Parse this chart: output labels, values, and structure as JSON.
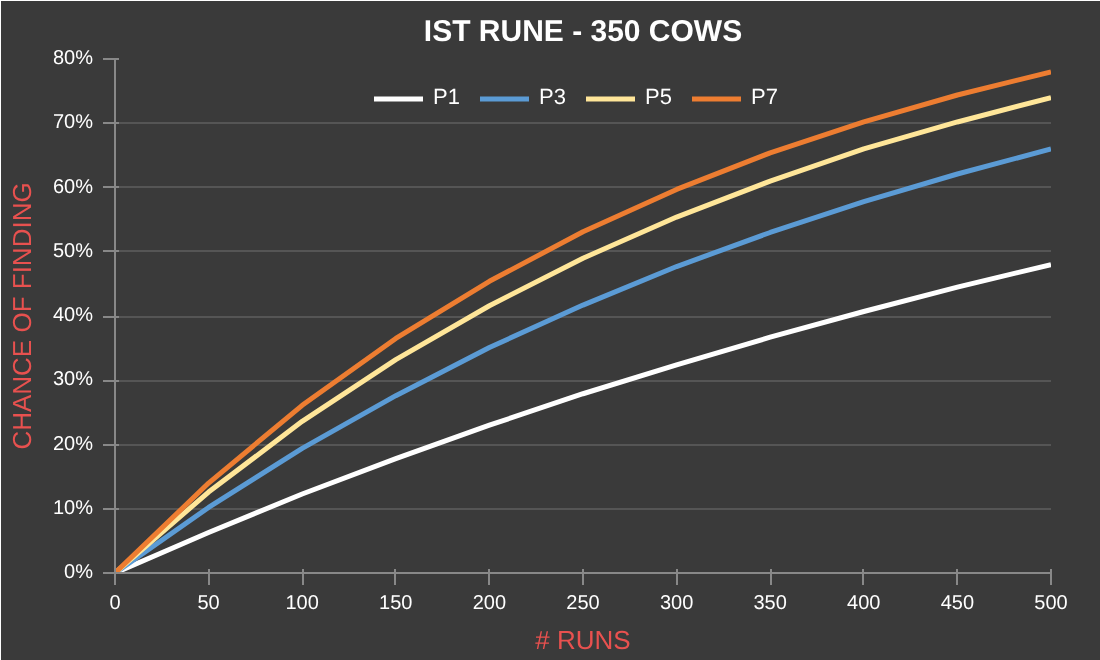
{
  "chart_data": {
    "type": "line",
    "title": "IST RUNE - 350 COWS",
    "xlabel": "# RUNS",
    "ylabel": "CHANCE OF FINDING",
    "x": [
      0,
      50,
      100,
      150,
      200,
      250,
      300,
      350,
      400,
      450,
      500
    ],
    "series": [
      {
        "name": "P1",
        "color": "#ffffff",
        "values": [
          0,
          6.3,
          12.3,
          17.8,
          23.0,
          27.9,
          32.4,
          36.7,
          40.7,
          44.5,
          48
        ]
      },
      {
        "name": "P3",
        "color": "#5b9bd5",
        "values": [
          0,
          10.2,
          19.4,
          27.6,
          35.1,
          41.7,
          47.7,
          53.0,
          57.8,
          62.1,
          66
        ]
      },
      {
        "name": "P5",
        "color": "#ffe699",
        "values": [
          0,
          12.6,
          23.6,
          33.2,
          41.6,
          49.0,
          55.4,
          61.0,
          66.0,
          70.2,
          74
        ]
      },
      {
        "name": "P7",
        "color": "#ed7d31",
        "values": [
          0,
          14.0,
          26.1,
          36.5,
          45.4,
          53.1,
          59.7,
          65.4,
          70.2,
          74.4,
          78
        ]
      }
    ],
    "xlim": [
      0,
      500
    ],
    "xticks": [
      0,
      50,
      100,
      150,
      200,
      250,
      300,
      350,
      400,
      450,
      500
    ],
    "ylim": [
      0,
      80
    ],
    "yticks": [
      {
        "value": 0,
        "label": "0%"
      },
      {
        "value": 10,
        "label": "10%"
      },
      {
        "value": 20,
        "label": "20%"
      },
      {
        "value": 30,
        "label": "30%"
      },
      {
        "value": 40,
        "label": "40%"
      },
      {
        "value": 50,
        "label": "50%"
      },
      {
        "value": 60,
        "label": "60%"
      },
      {
        "value": 70,
        "label": "70%"
      },
      {
        "value": 80,
        "label": "80%"
      }
    ],
    "grid": "y",
    "legend": "top",
    "marker": "none",
    "line_style": "solid"
  }
}
